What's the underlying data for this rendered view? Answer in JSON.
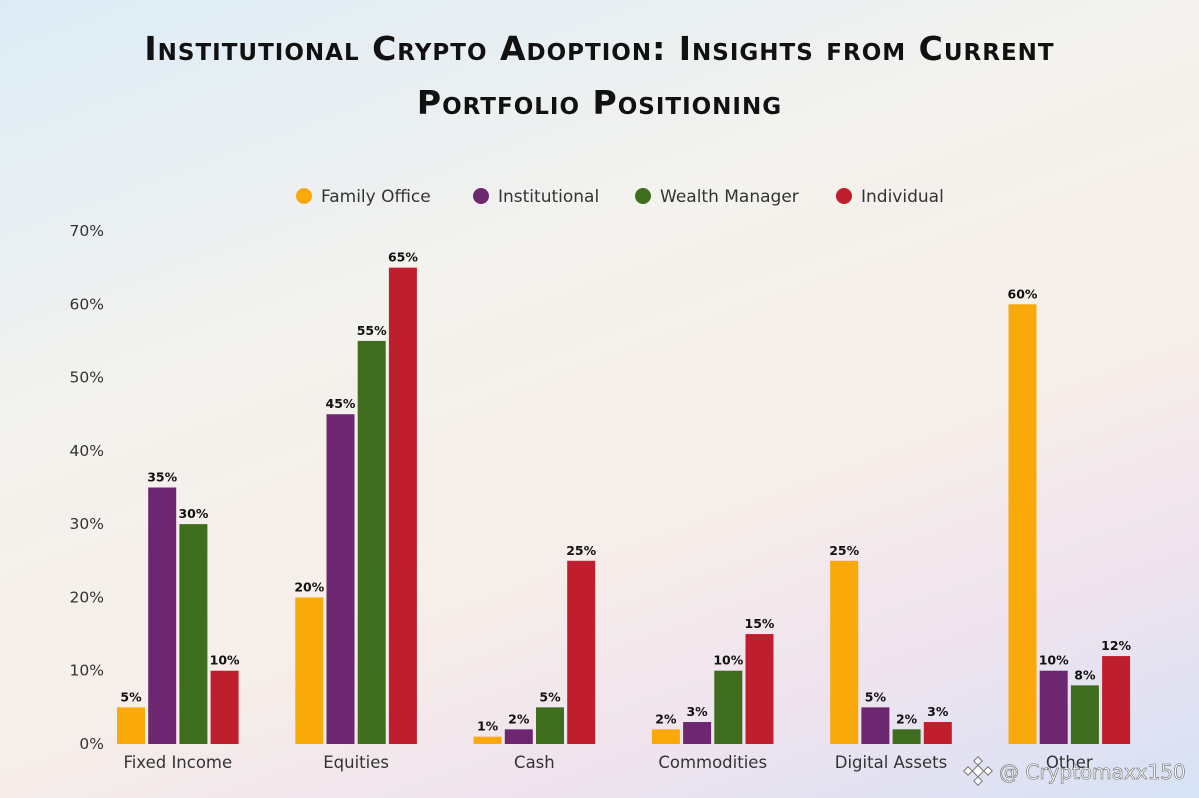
{
  "chart_data": {
    "type": "bar",
    "title_line1": "Institutional Crypto Adoption: Insights from Current",
    "title_line2": "Portfolio Positioning",
    "categories": [
      "Fixed Income",
      "Equities",
      "Cash",
      "Commodities",
      "Digital Assets",
      "Other"
    ],
    "series": [
      {
        "name": "Family Office",
        "color": "#f9a90a",
        "values": [
          5,
          20,
          1,
          2,
          25,
          60
        ],
        "labels": [
          "5%",
          "20%",
          "1%",
          "2%",
          "25%",
          "60%"
        ]
      },
      {
        "name": "Institutional",
        "color": "#6d2770",
        "values": [
          35,
          45,
          2,
          3,
          5,
          10
        ],
        "labels": [
          "35%",
          "45%",
          "2%",
          "3%",
          "5%",
          "10%"
        ]
      },
      {
        "name": "Wealth Manager",
        "color": "#3d6d1d",
        "values": [
          30,
          55,
          5,
          10,
          2,
          8
        ],
        "labels": [
          "30%",
          "55%",
          "5%",
          "10%",
          "2%",
          "8%"
        ]
      },
      {
        "name": "Individual",
        "color": "#bf1f2d",
        "values": [
          10,
          65,
          25,
          15,
          3,
          12
        ],
        "labels": [
          "10%",
          "65%",
          "25%",
          "15%",
          "3%",
          "12%"
        ]
      }
    ],
    "ylim": [
      0,
      70
    ],
    "yticks": [
      "0%",
      "10%",
      "20%",
      "30%",
      "40%",
      "50%",
      "60%",
      "70%"
    ],
    "legend_position": "top-center",
    "grid": false
  },
  "watermark": {
    "icon": "binance-diamond-icon",
    "text": "@ Cryptomaxx150"
  }
}
